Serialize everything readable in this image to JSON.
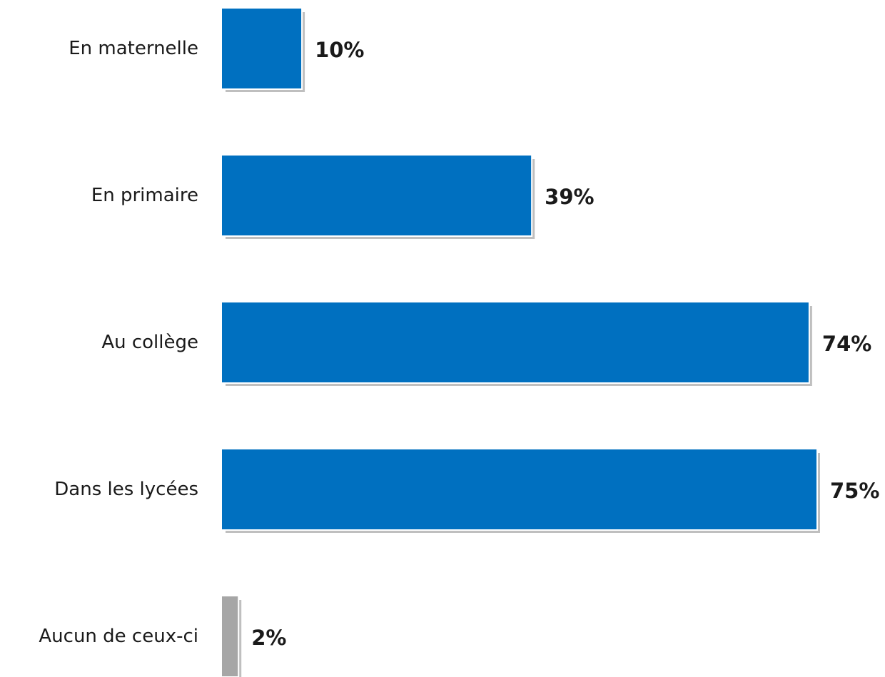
{
  "chart_data": {
    "type": "bar",
    "orientation": "horizontal",
    "categories": [
      "En maternelle",
      "En primaire",
      "Au collège",
      "Dans les lycées",
      "Aucun de ceux-ci"
    ],
    "values": [
      10,
      39,
      74,
      75,
      2
    ],
    "value_labels": [
      "10%",
      "39%",
      "74%",
      "75%",
      "2%"
    ],
    "unit": "%",
    "xlim": [
      0,
      75
    ],
    "grid": false,
    "legend": "none",
    "colors": {
      "bar": "#0070C0",
      "bar_none": "#A6A6A6",
      "shadow": "#BFBFBF",
      "label": "#1a1a1a"
    },
    "bar_color_keys": [
      "bar",
      "bar",
      "bar",
      "bar",
      "bar_none"
    ]
  }
}
